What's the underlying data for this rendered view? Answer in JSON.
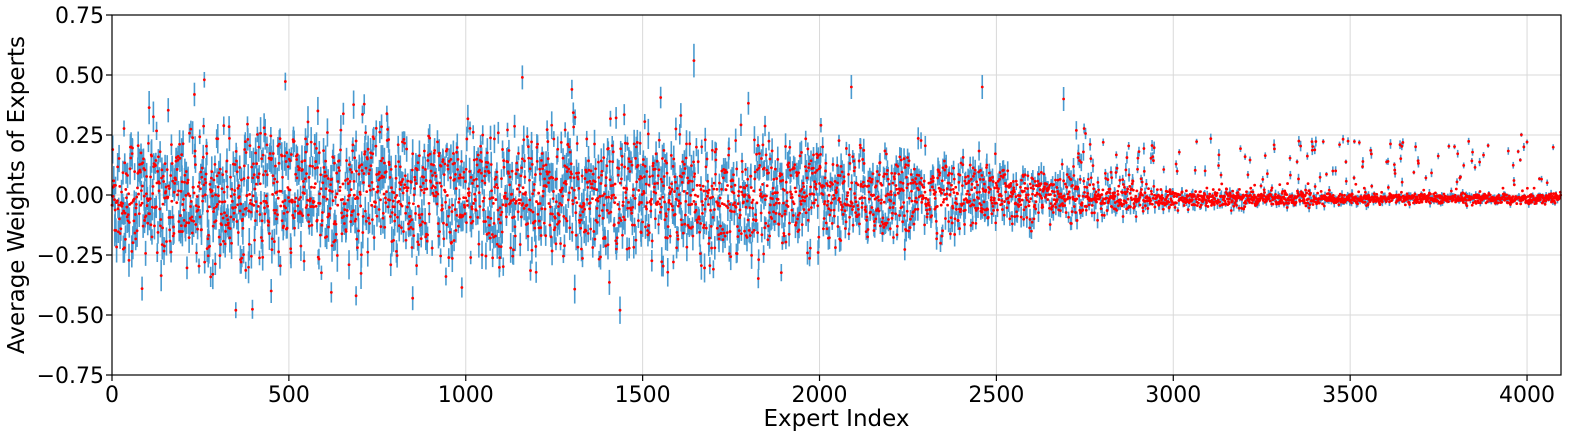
{
  "chart_data": {
    "type": "scatter",
    "title": "",
    "xlabel": "Expert Index",
    "ylabel": "Average Weights of Experts",
    "xlim": [
      0,
      4096
    ],
    "ylim": [
      -0.75,
      0.75
    ],
    "xticks": [
      0,
      500,
      1000,
      1500,
      2000,
      2500,
      3000,
      3500,
      4000
    ],
    "xtick_labels": [
      "0",
      "500",
      "1000",
      "1500",
      "2000",
      "2500",
      "3000",
      "3500",
      "4000"
    ],
    "yticks": [
      -0.75,
      -0.5,
      -0.25,
      0.0,
      0.25,
      0.5,
      0.75
    ],
    "ytick_labels": [
      "−0.75",
      "−0.50",
      "−0.25",
      "0.00",
      "0.25",
      "0.50",
      "0.75"
    ],
    "grid": true,
    "point_count": 4096,
    "point_color": "#ff0000",
    "errorbar_color": "#4a9bd0",
    "envelope": {
      "x": [
        0,
        500,
        1000,
        1500,
        2000,
        2500,
        2800,
        3000,
        3500,
        4096
      ],
      "mean_spread": [
        0.16,
        0.17,
        0.16,
        0.15,
        0.12,
        0.08,
        0.04,
        0.02,
        0.012,
        0.01
      ],
      "error_half_width": [
        0.05,
        0.05,
        0.045,
        0.045,
        0.04,
        0.035,
        0.025,
        0.02,
        0.015,
        0.012
      ]
    },
    "highlighted_points": [
      {
        "x": 1645,
        "y": 0.56,
        "err": 0.07
      },
      {
        "x": 1160,
        "y": 0.49,
        "err": 0.05
      },
      {
        "x": 2090,
        "y": 0.45,
        "err": 0.05
      },
      {
        "x": 2460,
        "y": 0.45,
        "err": 0.05
      },
      {
        "x": 1300,
        "y": 0.44,
        "err": 0.04
      },
      {
        "x": 850,
        "y": -0.43,
        "err": 0.05
      },
      {
        "x": 690,
        "y": -0.42,
        "err": 0.04
      },
      {
        "x": 450,
        "y": -0.4,
        "err": 0.05
      },
      {
        "x": 85,
        "y": -0.39,
        "err": 0.05
      },
      {
        "x": 2690,
        "y": 0.4,
        "err": 0.05
      }
    ]
  }
}
